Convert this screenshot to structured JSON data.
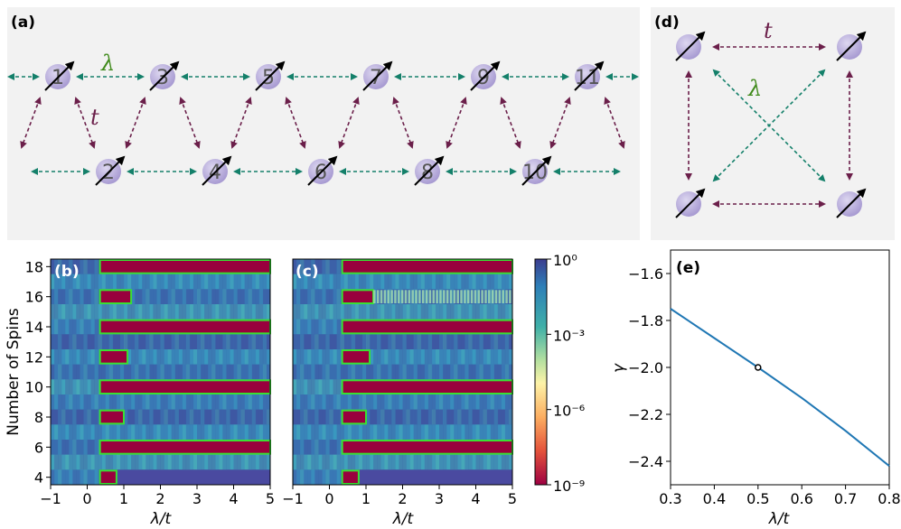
{
  "panels": {
    "a": {
      "label": "(a)",
      "lambda": "λ",
      "t": "t",
      "spins_top": [
        "1",
        "3",
        "5",
        "7",
        "9",
        "11"
      ],
      "spins_bottom": [
        "2",
        "4",
        "6",
        "8",
        "10"
      ]
    },
    "d": {
      "label": "(d)",
      "t": "t",
      "lambda": "λ"
    },
    "b": {
      "label": "(b)"
    },
    "c": {
      "label": "(c)"
    },
    "e": {
      "label": "(e)"
    }
  },
  "colors": {
    "t_arrow": "#6b1f4a",
    "lambda_arrow": "#14806a",
    "lambda_text": "#3f8a1a",
    "spin": "#b8aedb",
    "line": "#1f77b4",
    "bg": "#f2f2f2"
  },
  "heatmap": {
    "ylabel": "Number of Spins",
    "xlabel": "λ/t",
    "yticks": [
      "4",
      "6",
      "8",
      "10",
      "12",
      "14",
      "16",
      "18"
    ],
    "xticks": [
      "−1",
      "0",
      "1",
      "2",
      "3",
      "4",
      "5"
    ],
    "colorbar_ticks": [
      "10⁰",
      "10⁻³",
      "10⁻⁶",
      "10⁻⁹"
    ]
  },
  "chart_data": {
    "type": "line",
    "title": "",
    "xlabel": "λ/t",
    "ylabel": "γ",
    "xlim": [
      0.3,
      0.8
    ],
    "ylim": [
      -2.5,
      -1.5
    ],
    "xticks": [
      "0.3",
      "0.4",
      "0.5",
      "0.6",
      "0.7",
      "0.8"
    ],
    "yticks": [
      "−1.6",
      "−1.8",
      "−2.0",
      "−2.2",
      "−2.4"
    ],
    "series": [
      {
        "x": [
          0.3,
          0.4,
          0.5,
          0.6,
          0.7,
          0.8
        ],
        "y": [
          -1.75,
          -1.875,
          -2.0,
          -2.13,
          -2.27,
          -2.42
        ]
      }
    ],
    "marker": {
      "x": 0.5,
      "y": -2.0
    }
  }
}
